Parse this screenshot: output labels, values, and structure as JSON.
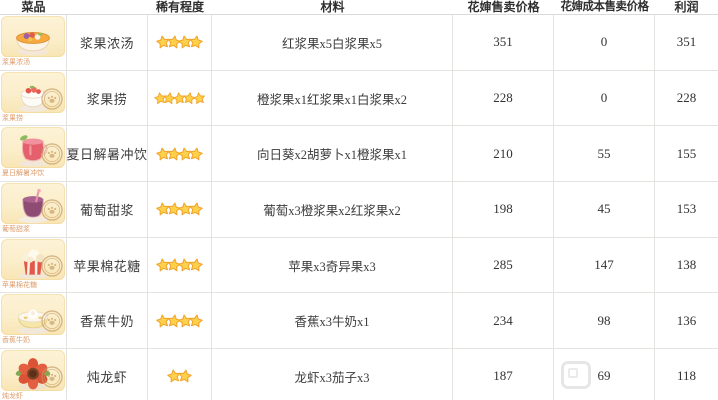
{
  "table": {
    "headers": {
      "dish": "菜品",
      "name": "",
      "rarity": "稀有程度",
      "materials": "材料",
      "sell_price": "花婶售卖价格",
      "cost_price": "花婶成本售卖价格",
      "profit": "利润"
    },
    "rows": [
      {
        "icon": "berry-soup-icon",
        "caption": "浆果浓汤",
        "name": "浆果浓汤",
        "stars": 4,
        "materials": "红浆果x5白浆果x5",
        "sell_price": "351",
        "cost_price": "0",
        "profit": "351",
        "stamp": false
      },
      {
        "icon": "berry-dessert-icon",
        "caption": "浆果捞",
        "name": "浆果捞",
        "stars": 5,
        "materials": "橙浆果x1红浆果x1白浆果x2",
        "sell_price": "228",
        "cost_price": "0",
        "profit": "228",
        "stamp": true
      },
      {
        "icon": "summer-cooler-drink-icon",
        "caption": "夏日解暑冲饮",
        "name": "夏日解暑冲饮",
        "stars": 4,
        "materials": "向日葵x2胡萝卜x1橙浆果x1",
        "sell_price": "210",
        "cost_price": "55",
        "profit": "155",
        "stamp": true
      },
      {
        "icon": "grape-sweet-syrup-icon",
        "caption": "葡萄甜浆",
        "name": "葡萄甜浆",
        "stars": 4,
        "materials": "葡萄x3橙浆果x2红浆果x2",
        "sell_price": "198",
        "cost_price": "45",
        "profit": "153",
        "stamp": true
      },
      {
        "icon": "apple-cotton-candy-icon",
        "caption": "苹果棉花糖",
        "name": "苹果棉花糖",
        "stars": 4,
        "materials": "苹果x3奇异果x3",
        "sell_price": "285",
        "cost_price": "147",
        "profit": "138",
        "stamp": true
      },
      {
        "icon": "banana-milk-icon",
        "caption": "香蕉牛奶",
        "name": "香蕉牛奶",
        "stars": 4,
        "materials": "香蕉x3牛奶x1",
        "sell_price": "234",
        "cost_price": "98",
        "profit": "136",
        "stamp": true
      },
      {
        "icon": "stewed-lobster-icon",
        "caption": "炖龙虾",
        "name": "炖龙虾",
        "stars": 2,
        "materials": "龙虾x3茄子x3",
        "sell_price": "187",
        "cost_price": "69",
        "profit": "118",
        "stamp": true
      }
    ]
  },
  "colors": {
    "star_gold": "#FFD04A",
    "star_outline": "#F0A52C",
    "card_bg": "#FBEECB",
    "caption_orange": "#DC9B6B",
    "grid_border": "#E4E3E0",
    "text": "#3C3C3C",
    "stamp_brown": "#C49A62"
  }
}
